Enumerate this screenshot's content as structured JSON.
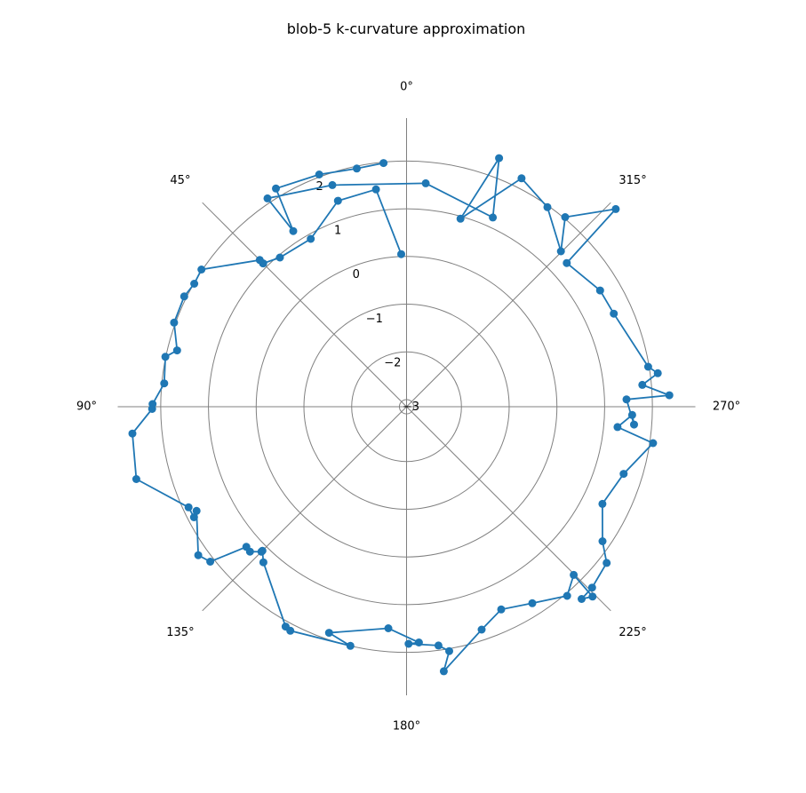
{
  "chart_data": {
    "type": "line",
    "projection": "polar",
    "title": "blob-5 k-curvature approximation",
    "theta_zero_location": "N",
    "theta_direction": "counterclockwise",
    "theta_unit": "degrees",
    "angle_tick_labels": [
      "0°",
      "45°",
      "90°",
      "135°",
      "180°",
      "225°",
      "270°",
      "315°"
    ],
    "angle_ticks_deg": [
      0,
      45,
      90,
      135,
      180,
      225,
      270,
      315
    ],
    "r_ticks": [
      -3,
      -2,
      -1,
      0,
      1,
      2
    ],
    "r_tick_labels": [
      "−3",
      "−2",
      "−1",
      "0",
      "1",
      "2"
    ],
    "rlim": [
      -3.15,
      2.9
    ],
    "grid": true,
    "legend": "none",
    "marker": "circle",
    "color": "#1f77b4",
    "series": [
      {
        "theta_deg": [
          2.0,
          8.0,
          18.4,
          29.7,
          40.3,
          45.0,
          45.0,
          45.0,
          56.2,
          59.9,
          63.6,
          70.1,
          76.2,
          78.3,
          84.5,
          89.4,
          90.5,
          95.6,
          105.0,
          114.8,
          117.5,
          116.4,
          125.5,
          128.3,
          131.2,
          132.8,
          135.0,
          135.0,
          137.4,
          151.2,
          152.6,
          166.8,
          161.1,
          175.3,
          183.0,
          180.5,
          187.6,
          189.9,
          188.0,
          198.6,
          205.0,
          212.6,
          220.3,
          224.8,
          224.4,
          222.3,
          225.7,
          232.0,
          235.5,
          243.6,
          252.8,
          261.6,
          264.5,
          267.9,
          265.5,
          271.9,
          272.5,
          275.3,
          277.6,
          279.4,
          294.2,
          301.0,
          311.9,
          313.4,
          320.1,
          315.2,
          324.8,
          333.3,
          344.0,
          339.6,
          335.5,
          355.1,
          18.5,
          33.7,
          32.8,
          30.9,
          20.6,
          11.8,
          5.4
        ],
        "r": [
          0.05,
          1.45,
          1.4,
          0.9,
          0.95,
          1.1,
          1.1,
          1.2,
          2.02,
          1.99,
          2.05,
          2.03,
          1.8,
          2.01,
          1.95,
          2.17,
          2.18,
          2.62,
          2.71,
          1.88,
          1.87,
          1.76,
          2.21,
          2.09,
          1.31,
          1.32,
          1.15,
          1.12,
          1.28,
          2.11,
          2.14,
          2.0,
          1.86,
          1.51,
          1.8,
          1.82,
          1.9,
          2.05,
          2.45,
          1.78,
          1.54,
          1.74,
          2.05,
          1.82,
          2.42,
          2.3,
          2.28,
          2.17,
          1.83,
          1.43,
          1.61,
          2.07,
          1.29,
          1.58,
          1.63,
          1.46,
          2.36,
          1.81,
          2.16,
          1.98,
          1.61,
          1.58,
          1.36,
          2.88,
          2.03,
          1.44,
          1.97,
          2.21,
          0.95,
          2.41,
          1.21,
          1.55,
          1.75,
          2.1,
          1.23,
          2.18,
          2.05,
          1.95,
          1.98
        ]
      }
    ]
  }
}
